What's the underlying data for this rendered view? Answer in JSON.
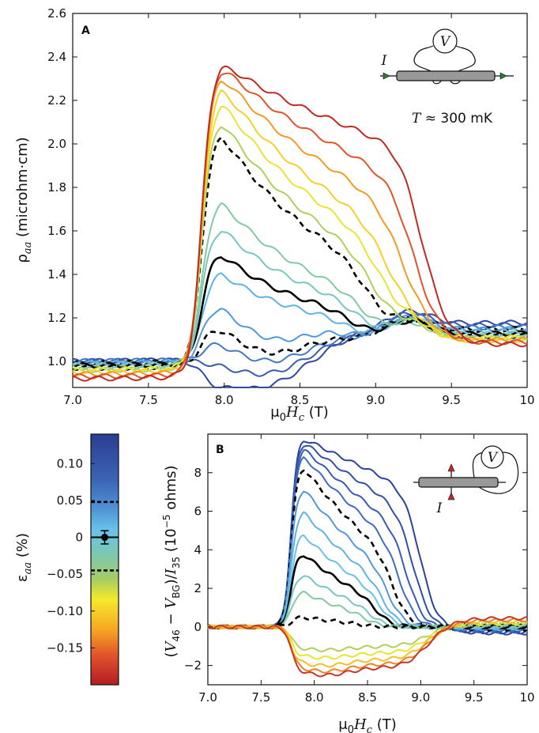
{
  "chart_data": [
    {
      "panel": "A",
      "type": "line",
      "xlabel": "μ0Hc (T)",
      "ylabel": "ρaa (microhm·cm)",
      "xlim": [
        7.0,
        10.0
      ],
      "ylim": [
        0.88,
        2.6
      ],
      "xticks": [
        "7.0",
        "7.5",
        "8.0",
        "8.5",
        "9.0",
        "9.5",
        "10"
      ],
      "yticks": [
        "1.0",
        "1.2",
        "1.4",
        "1.6",
        "1.8",
        "2.0",
        "2.2",
        "2.4",
        "2.6"
      ],
      "annotation": "T ≈ 300 mK",
      "inset_labels": [
        "I",
        "V"
      ],
      "series_note": "colored curves at different strains (blue = positive, red = negative); solid black = zero strain; dashed black = ±0.05%",
      "curves": [
        {
          "eps": 0.12,
          "peak": 1.0,
          "base_left": 1.0,
          "base_right": 1.18
        },
        {
          "eps": 0.09,
          "peak": 1.1,
          "base_left": 1.0,
          "base_right": 1.17
        },
        {
          "eps": 0.06,
          "peak": 1.2,
          "base_left": 1.0,
          "base_right": 1.16
        },
        {
          "eps": 0.05,
          "peak": 1.28,
          "base_left": 0.99,
          "base_right": 1.15,
          "style": "dashed"
        },
        {
          "eps": 0.035,
          "peak": 1.38,
          "base_left": 0.99,
          "base_right": 1.15
        },
        {
          "eps": 0.02,
          "peak": 1.5,
          "base_left": 0.99,
          "base_right": 1.14
        },
        {
          "eps": 0.0,
          "peak": 1.6,
          "base_left": 0.98,
          "base_right": 1.13,
          "style": "solid"
        },
        {
          "eps": -0.015,
          "peak": 1.72,
          "base_left": 0.98,
          "base_right": 1.13
        },
        {
          "eps": -0.03,
          "peak": 1.85,
          "base_left": 0.97,
          "base_right": 1.12
        },
        {
          "eps": -0.045,
          "peak": 2.14,
          "base_left": 0.97,
          "base_right": 1.12,
          "style": "dashed"
        },
        {
          "eps": -0.06,
          "peak": 2.2,
          "base_left": 0.96,
          "base_right": 1.11
        },
        {
          "eps": -0.08,
          "peak": 2.27,
          "base_left": 0.96,
          "base_right": 1.11
        },
        {
          "eps": -0.1,
          "peak": 2.33,
          "base_left": 0.95,
          "base_right": 1.1
        },
        {
          "eps": -0.13,
          "peak": 2.38,
          "base_left": 0.94,
          "base_right": 1.1
        },
        {
          "eps": -0.16,
          "peak": 2.42,
          "base_left": 0.93,
          "base_right": 1.09
        },
        {
          "eps": -0.19,
          "peak": 2.44,
          "base_left": 0.92,
          "base_right": 1.08
        }
      ]
    },
    {
      "panel": "B",
      "type": "line",
      "xlabel": "μ0Hc (T)",
      "ylabel": "(V46 − VBG)/I35 (10−5 ohms)",
      "xlim": [
        7.0,
        10.0
      ],
      "ylim": [
        -3.0,
        10.0
      ],
      "xticks": [
        "7.0",
        "7.5",
        "8.0",
        "8.5",
        "9.0",
        "9.5",
        "10"
      ],
      "yticks": [
        "−2",
        "0",
        "2",
        "4",
        "6",
        "8"
      ],
      "inset_labels": [
        "I",
        "V"
      ],
      "curves": [
        {
          "eps": 0.13,
          "peak": 9.8
        },
        {
          "eps": 0.11,
          "peak": 9.6
        },
        {
          "eps": 0.09,
          "peak": 9.3
        },
        {
          "eps": 0.07,
          "peak": 8.9
        },
        {
          "eps": 0.05,
          "peak": 8.3,
          "style": "dashed"
        },
        {
          "eps": 0.035,
          "peak": 7.2
        },
        {
          "eps": 0.02,
          "peak": 6.0
        },
        {
          "eps": 0.01,
          "peak": 4.8
        },
        {
          "eps": 0.0,
          "peak": 3.8,
          "style": "solid"
        },
        {
          "eps": -0.015,
          "peak": 2.7
        },
        {
          "eps": -0.03,
          "peak": 1.8
        },
        {
          "eps": -0.045,
          "peak": 0.5,
          "style": "dashed"
        },
        {
          "eps": -0.06,
          "peak": -1.2
        },
        {
          "eps": -0.08,
          "peak": -1.6
        },
        {
          "eps": -0.11,
          "peak": -2.0
        },
        {
          "eps": -0.14,
          "peak": -2.3
        },
        {
          "eps": -0.18,
          "peak": -2.5
        }
      ]
    },
    {
      "panel": "colorbar",
      "type": "heatmap",
      "label": "εaa (%)",
      "ticks": [
        "0.10",
        "0.05",
        "0",
        "−0.05",
        "−0.10",
        "−0.15"
      ],
      "tick_values": [
        0.1,
        0.05,
        0.0,
        -0.05,
        -0.1,
        -0.15
      ],
      "range": [
        -0.2,
        0.14
      ],
      "dashed_markers": [
        0.048,
        -0.045
      ],
      "zero_marker_error": 0.009
    }
  ]
}
